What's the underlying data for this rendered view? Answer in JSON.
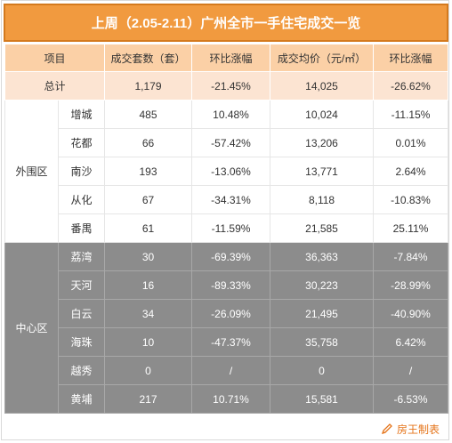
{
  "title": "上周（2.05-2.11）广州全市一手住宅成交一览",
  "headers": [
    "项目",
    "成交套数（套）",
    "环比涨幅",
    "成交均价（元/㎡）",
    "环比涨幅"
  ],
  "total": {
    "label": "总计",
    "units": "1,179",
    "units_change": "-21.45%",
    "price": "14,025",
    "price_change": "-26.62%"
  },
  "outer_region": {
    "label": "外围区",
    "rows": [
      {
        "district": "增城",
        "units": "485",
        "units_change": "10.48%",
        "price": "10,024",
        "price_change": "-11.15%"
      },
      {
        "district": "花都",
        "units": "66",
        "units_change": "-57.42%",
        "price": "13,206",
        "price_change": "0.01%"
      },
      {
        "district": "南沙",
        "units": "193",
        "units_change": "-13.06%",
        "price": "13,771",
        "price_change": "2.64%"
      },
      {
        "district": "从化",
        "units": "67",
        "units_change": "-34.31%",
        "price": "8,118",
        "price_change": "-10.83%"
      },
      {
        "district": "番禺",
        "units": "61",
        "units_change": "-11.59%",
        "price": "21,585",
        "price_change": "25.11%"
      }
    ]
  },
  "center_region": {
    "label": "中心区",
    "rows": [
      {
        "district": "荔湾",
        "units": "30",
        "units_change": "-69.39%",
        "price": "36,363",
        "price_change": "-7.84%"
      },
      {
        "district": "天河",
        "units": "16",
        "units_change": "-89.33%",
        "price": "30,223",
        "price_change": "-28.99%"
      },
      {
        "district": "白云",
        "units": "34",
        "units_change": "-26.09%",
        "price": "21,495",
        "price_change": "-40.90%"
      },
      {
        "district": "海珠",
        "units": "10",
        "units_change": "-47.37%",
        "price": "35,758",
        "price_change": "6.42%"
      },
      {
        "district": "越秀",
        "units": "0",
        "units_change": "/",
        "price": "0",
        "price_change": "/"
      },
      {
        "district": "黄埔",
        "units": "217",
        "units_change": "10.71%",
        "price": "15,581",
        "price_change": "-6.53%"
      }
    ]
  },
  "footer": {
    "source": "房王制表",
    "icon": "pencil-icon"
  },
  "colors": {
    "title_bg": "#f19a3f",
    "header_bg": "#fbd0a6",
    "total_bg": "#fce4d2",
    "center_bg": "#8c8c8c",
    "footer_text": "#e5741a"
  }
}
